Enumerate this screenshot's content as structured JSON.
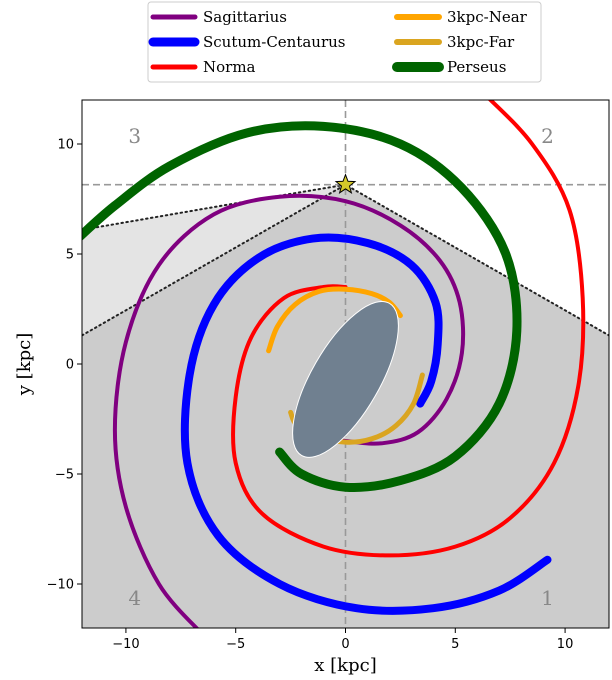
{
  "chart_data": {
    "type": "line",
    "title": "",
    "xlabel": "x [kpc]",
    "ylabel": "y [kpc]",
    "xlim": [
      -12,
      12
    ],
    "ylim": [
      -12,
      12
    ],
    "xticks": [
      -10,
      -5,
      0,
      5,
      10
    ],
    "yticks": [
      -10,
      -5,
      0,
      5,
      10
    ],
    "xtick_labels": [
      "−10",
      "−5",
      "0",
      "5",
      "10"
    ],
    "ytick_labels": [
      "−10",
      "−5",
      "0",
      "5",
      "10"
    ],
    "grid": false,
    "legend_position": "top-center",
    "sun": {
      "x": 0.0,
      "y": 8.15,
      "color": "#d4c82a"
    },
    "bar": {
      "cx": 0.0,
      "cy": -0.7,
      "semi_major": 4.0,
      "semi_minor": 1.55,
      "angle_deg": 60,
      "color": "#708090"
    },
    "quadrant_labels": [
      {
        "text": "1",
        "x": 9.2,
        "y": -10.7
      },
      {
        "text": "2",
        "x": 9.2,
        "y": 10.3
      },
      {
        "text": "3",
        "x": -9.6,
        "y": 10.3
      },
      {
        "text": "4",
        "x": -9.6,
        "y": -10.7
      }
    ],
    "guide_lines": {
      "vertical_x": 0,
      "horizontal_y": 8.15
    },
    "shaded_regions": [
      {
        "name": "dark",
        "color": "#cccccc",
        "points": [
          [
            -12,
            1.3
          ],
          [
            0,
            8.15
          ],
          [
            12,
            1.3
          ],
          [
            12,
            -12
          ],
          [
            -12,
            -12
          ]
        ]
      },
      {
        "name": "light",
        "color": "#e4e4e4",
        "points": [
          [
            -12,
            6.1
          ],
          [
            -2.7,
            7.7
          ],
          [
            0,
            8.15
          ],
          [
            -12,
            1.3
          ]
        ]
      }
    ],
    "dotted_lines": [
      [
        [
          -12,
          6.1
        ],
        [
          -2.7,
          7.7
        ],
        [
          0,
          8.15
        ],
        [
          12,
          1.3
        ]
      ],
      [
        [
          -12,
          1.3
        ],
        [
          0,
          8.15
        ]
      ]
    ],
    "series": [
      {
        "name": "Sagittarius",
        "color": "#800080",
        "width": 4,
        "points": [
          [
            -6.5,
            -12.3
          ],
          [
            -8.5,
            -10.0
          ],
          [
            -10.0,
            -6.5
          ],
          [
            -10.5,
            -3.0
          ],
          [
            -10.0,
            1.0
          ],
          [
            -8.5,
            4.5
          ],
          [
            -6.0,
            6.8
          ],
          [
            -3.0,
            7.6
          ],
          [
            0.0,
            7.4
          ],
          [
            2.5,
            6.3
          ],
          [
            4.3,
            4.7
          ],
          [
            5.2,
            2.8
          ],
          [
            5.3,
            0.5
          ],
          [
            4.6,
            -1.6
          ],
          [
            3.3,
            -3.1
          ],
          [
            1.7,
            -3.6
          ],
          [
            0.0,
            -3.5
          ],
          [
            -1.5,
            -3.3
          ]
        ]
      },
      {
        "name": "Scutum-Centaurus",
        "color": "#0000ff",
        "width": 8,
        "points": [
          [
            9.2,
            -8.9
          ],
          [
            7.0,
            -10.3
          ],
          [
            4.0,
            -11.1
          ],
          [
            0.5,
            -11.1
          ],
          [
            -3.0,
            -10.0
          ],
          [
            -5.8,
            -7.8
          ],
          [
            -7.2,
            -4.5
          ],
          [
            -7.1,
            -0.5
          ],
          [
            -6.0,
            2.7
          ],
          [
            -4.0,
            4.8
          ],
          [
            -1.5,
            5.7
          ],
          [
            1.0,
            5.5
          ],
          [
            3.0,
            4.5
          ],
          [
            4.1,
            2.8
          ],
          [
            4.2,
            0.9
          ],
          [
            3.9,
            -0.8
          ],
          [
            3.4,
            -1.8
          ]
        ]
      },
      {
        "name": "Norma",
        "color": "#ff0000",
        "width": 4,
        "points": [
          [
            6.3,
            12.3
          ],
          [
            8.5,
            10.0
          ],
          [
            10.2,
            7.0
          ],
          [
            10.8,
            3.0
          ],
          [
            10.6,
            -1.0
          ],
          [
            9.5,
            -4.5
          ],
          [
            7.5,
            -7.0
          ],
          [
            5.0,
            -8.3
          ],
          [
            2.0,
            -8.7
          ],
          [
            -1.0,
            -8.3
          ],
          [
            -3.8,
            -6.8
          ],
          [
            -5.0,
            -4.5
          ],
          [
            -5.0,
            -1.5
          ],
          [
            -4.3,
            1.2
          ],
          [
            -2.8,
            3.0
          ],
          [
            -1.0,
            3.5
          ],
          [
            0.0,
            3.5
          ]
        ]
      },
      {
        "name": "3kpc-Near",
        "color": "#ffa500",
        "width": 5,
        "points": [
          [
            -3.5,
            0.6
          ],
          [
            -3.1,
            1.7
          ],
          [
            -2.3,
            2.7
          ],
          [
            -1.2,
            3.3
          ],
          [
            0.0,
            3.4
          ],
          [
            1.2,
            3.2
          ],
          [
            2.0,
            2.8
          ],
          [
            2.5,
            2.2
          ]
        ]
      },
      {
        "name": "3kpc-Far",
        "color": "#daa520",
        "width": 5,
        "points": [
          [
            3.5,
            -0.5
          ],
          [
            3.1,
            -1.8
          ],
          [
            2.3,
            -2.8
          ],
          [
            1.2,
            -3.4
          ],
          [
            0.0,
            -3.55
          ],
          [
            -1.2,
            -3.3
          ],
          [
            -2.2,
            -2.8
          ],
          [
            -2.5,
            -2.2
          ]
        ]
      },
      {
        "name": "Perseus",
        "color": "#006400",
        "width": 9,
        "points": [
          [
            -3.0,
            -4.0
          ],
          [
            -2.0,
            -5.0
          ],
          [
            0.0,
            -5.6
          ],
          [
            2.5,
            -5.3
          ],
          [
            5.0,
            -4.2
          ],
          [
            7.0,
            -1.8
          ],
          [
            7.8,
            1.5
          ],
          [
            7.3,
            5.0
          ],
          [
            5.3,
            8.0
          ],
          [
            2.5,
            10.0
          ],
          [
            -1.0,
            10.8
          ],
          [
            -4.5,
            10.5
          ],
          [
            -8.0,
            9.0
          ],
          [
            -10.5,
            7.2
          ],
          [
            -12.2,
            5.7
          ]
        ]
      }
    ],
    "legend": {
      "columns": [
        [
          "Sagittarius",
          "Scutum-Centaurus",
          "Norma"
        ],
        [
          "3kpc-Near",
          "3kpc-Far",
          "Perseus"
        ]
      ]
    }
  }
}
